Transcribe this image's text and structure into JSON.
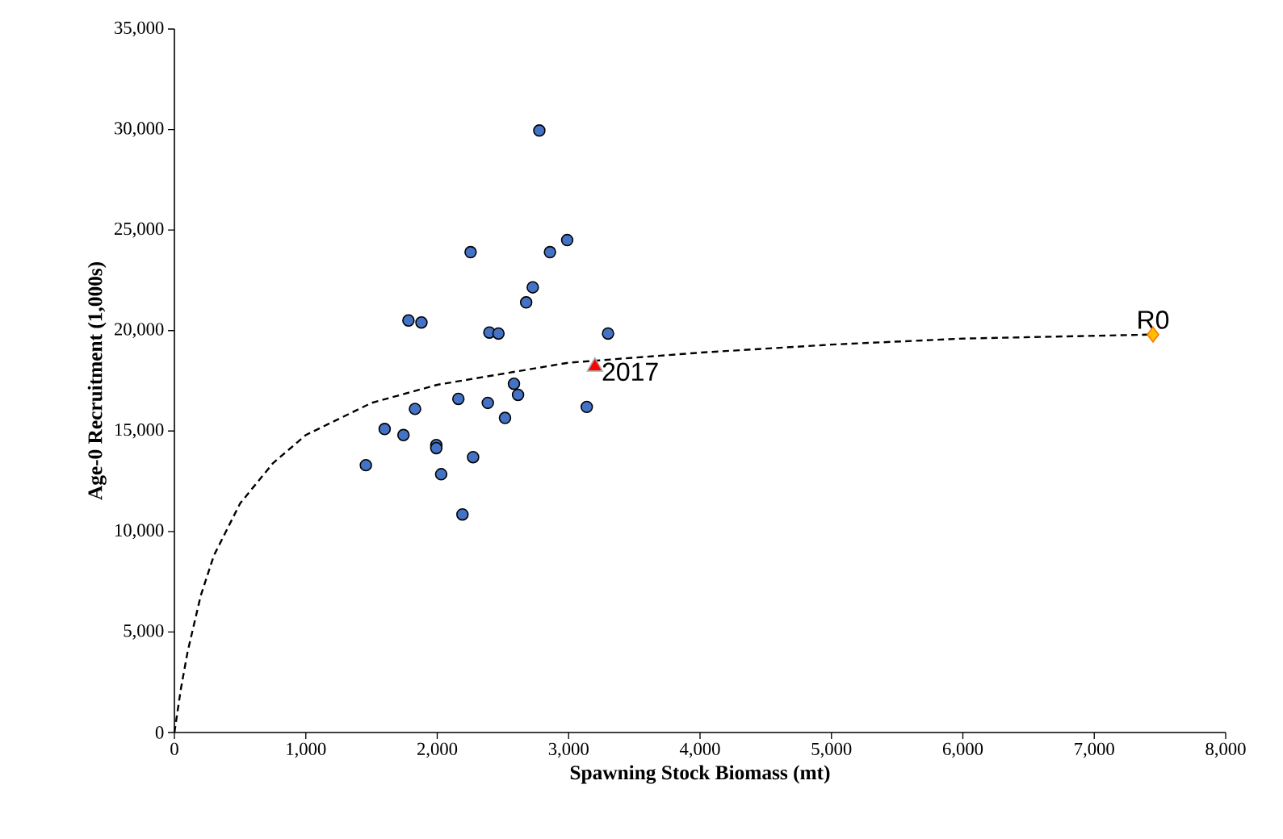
{
  "chart_data": {
    "type": "scatter",
    "xlabel": "Spawning Stock Biomass (mt)",
    "ylabel": "Age-0 Recruitment (1,000s)",
    "xlim": [
      0,
      8000
    ],
    "ylim": [
      0,
      35000
    ],
    "xticks": [
      {
        "value": 0,
        "label": "0"
      },
      {
        "value": 1000,
        "label": "1,000"
      },
      {
        "value": 2000,
        "label": "2,000"
      },
      {
        "value": 3000,
        "label": "3,000"
      },
      {
        "value": 4000,
        "label": "4,000"
      },
      {
        "value": 5000,
        "label": "5,000"
      },
      {
        "value": 6000,
        "label": "6,000"
      },
      {
        "value": 7000,
        "label": "7,000"
      },
      {
        "value": 8000,
        "label": "8,000"
      }
    ],
    "yticks": [
      {
        "value": 0,
        "label": "0"
      },
      {
        "value": 5000,
        "label": "5,000"
      },
      {
        "value": 10000,
        "label": "10,000"
      },
      {
        "value": 15000,
        "label": "15,000"
      },
      {
        "value": 20000,
        "label": "20,000"
      },
      {
        "value": 25000,
        "label": "25,000"
      },
      {
        "value": 30000,
        "label": "30,000"
      },
      {
        "value": 35000,
        "label": "35,000"
      }
    ],
    "grid": false,
    "legend": false,
    "series": [
      {
        "type": "line",
        "color": "#000000",
        "line_style": "dashed",
        "marker": "none",
        "x": [
          0,
          50,
          100,
          200,
          300,
          500,
          750,
          1000,
          1500,
          2000,
          3000,
          4000,
          5000,
          6000,
          7447
        ],
        "values": [
          0,
          2200,
          4000,
          6800,
          8800,
          11400,
          13400,
          14800,
          16400,
          17300,
          18400,
          18900,
          19300,
          19600,
          19800
        ]
      },
      {
        "color": "#4472c4",
        "marker": "circle",
        "x": [
          1457,
          1600,
          1743,
          1831,
          1781,
          1880,
          1993,
          1993,
          2030,
          2161,
          2192,
          2254,
          2273,
          2385,
          2397,
          2466,
          2516,
          2584,
          2615,
          2677,
          2727,
          2777,
          2858,
          2989,
          3138,
          3300
        ],
        "values": [
          13300,
          15100,
          14800,
          16100,
          20500,
          20400,
          14300,
          14150,
          12850,
          16600,
          10850,
          23900,
          13700,
          16400,
          19900,
          19850,
          15650,
          17350,
          16800,
          21400,
          22150,
          29950,
          23900,
          24500,
          16200,
          19850
        ]
      },
      {
        "name": "2017",
        "color": "#ff0000",
        "marker": "triangle",
        "x": [
          3200
        ],
        "values": [
          18200
        ]
      },
      {
        "name": "R0",
        "color": "#ffc000",
        "marker": "diamond",
        "x": [
          7447
        ],
        "values": [
          19800
        ]
      }
    ]
  }
}
